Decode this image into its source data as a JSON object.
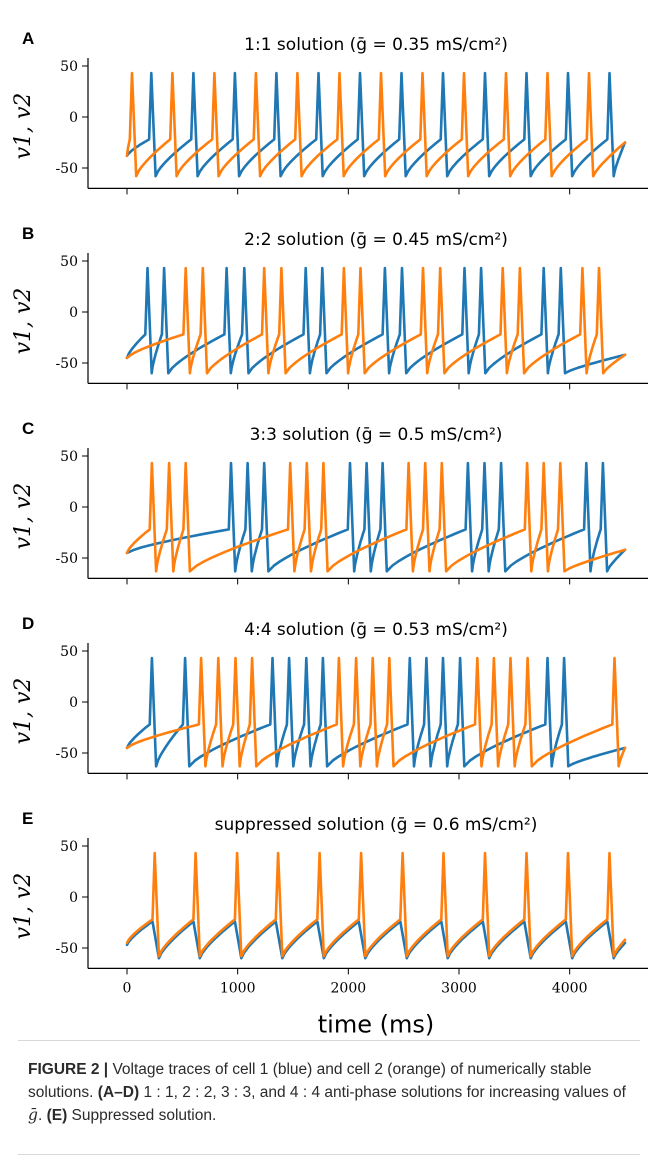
{
  "figure": {
    "xlabel": "time (ms)",
    "ylabel": "v1, v2",
    "x_ticks": [
      0,
      1000,
      2000,
      3000,
      4000
    ],
    "y_ticks": [
      50,
      0,
      -50
    ],
    "series_colors": {
      "cell1": "#1f77b4",
      "cell2": "#ff7f0e"
    }
  },
  "chart_data": [
    {
      "type": "line",
      "panel": "A",
      "title": "1:1 solution (ḡ = 0.35 mS/cm²)",
      "xlabel": "",
      "ylabel": "v1, v2",
      "xlim": [
        0,
        4500
      ],
      "ylim": [
        -70,
        50
      ],
      "series": [
        {
          "peaks_ms": [
            220,
            600,
            975,
            1350,
            1730,
            2105,
            2480,
            2855,
            3235,
            3610,
            3985,
            4360
          ]
        },
        {
          "peaks_ms": [
            45,
            410,
            790,
            1165,
            1540,
            1920,
            2295,
            2670,
            3045,
            3425,
            3800,
            4175
          ]
        }
      ],
      "spike_peak": 43,
      "trough": -58,
      "baseline_start": -38,
      "end_value": -25
    },
    {
      "type": "line",
      "panel": "B",
      "title": "2:2 solution (ḡ = 0.45 mS/cm²)",
      "xlabel": "",
      "ylabel": "v1, v2",
      "xlim": [
        0,
        4500
      ],
      "ylim": [
        -70,
        50
      ],
      "series": [
        {
          "peaks_ms": [
            185,
            335,
            900,
            1060,
            1615,
            1765,
            2330,
            2485,
            3050,
            3200,
            3765,
            3920
          ]
        },
        {
          "peaks_ms": [
            530,
            685,
            1240,
            1395,
            1960,
            2110,
            2675,
            2830,
            3395,
            3550,
            4115,
            4265
          ]
        }
      ],
      "spike_peak": 43,
      "trough": -60,
      "baseline_start": -45,
      "end_value": -42
    },
    {
      "type": "line",
      "panel": "C",
      "title": "3:3 solution (ḡ = 0.5 mS/cm²)",
      "xlabel": "",
      "ylabel": "v1, v2",
      "xlim": [
        0,
        4500
      ],
      "ylim": [
        -70,
        50
      ],
      "series": [
        {
          "peaks_ms": [
            940,
            1090,
            1240,
            2015,
            2165,
            2310,
            3080,
            3230,
            3380,
            4150,
            4300
          ]
        },
        {
          "peaks_ms": [
            225,
            380,
            530,
            1475,
            1625,
            1775,
            2545,
            2695,
            2845,
            3615,
            3765,
            3915
          ]
        }
      ],
      "spike_peak": 43,
      "trough": -63,
      "baseline_start": -45,
      "end_value": -42
    },
    {
      "type": "line",
      "panel": "D",
      "title": "4:4 solution (ḡ = 0.53 mS/cm²)",
      "xlabel": "",
      "ylabel": "v1, v2",
      "xlim": [
        0,
        4500
      ],
      "ylim": [
        -70,
        50
      ],
      "series": [
        {
          "peaks_ms": [
            225,
            525,
            1315,
            1465,
            1620,
            1770,
            2555,
            2705,
            2855,
            3010,
            3800,
            3950
          ]
        },
        {
          "peaks_ms": [
            670,
            825,
            980,
            1130,
            1915,
            2070,
            2220,
            2370,
            3165,
            3315,
            3465,
            3620,
            4405
          ]
        }
      ],
      "spike_peak": 43,
      "trough": -63,
      "baseline_start": -45,
      "end_value": -45
    },
    {
      "type": "line",
      "panel": "E",
      "title": "suppressed solution (ḡ = 0.6 mS/cm²)",
      "xlabel": "time (ms)",
      "ylabel": "v1, v2",
      "xlim": [
        0,
        4500
      ],
      "ylim": [
        -70,
        50
      ],
      "series": [
        {
          "peaks_ms": []
        },
        {
          "peaks_ms": [
            250,
            620,
            995,
            1365,
            1740,
            2115,
            2490,
            2860,
            3235,
            3610,
            3985,
            4360
          ]
        }
      ],
      "spike_peak": 43,
      "trough": -58,
      "baseline_start": -45,
      "end_value": -42
    }
  ],
  "caption": {
    "figure_label": "FIGURE 2 |",
    "text_1": " Voltage traces of cell 1 (blue) and cell 2 (orange) of numerically stable solutions. ",
    "bold_ad": "(A–D)",
    "text_2": " 1 : 1, 2 : 2, 3 : 3, and 4 : 4 anti-phase solutions for increasing values of ",
    "gbar": "ḡ",
    "text_3": ". ",
    "bold_e": "(E)",
    "text_4": " Suppressed solution."
  }
}
